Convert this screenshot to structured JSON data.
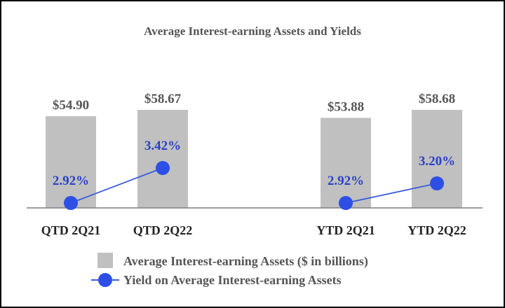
{
  "chart_data": {
    "type": "bar",
    "title": "Average Interest-earning Assets and Yields",
    "categories": [
      "QTD 2Q21",
      "QTD 2Q22",
      "YTD 2Q21",
      "YTD 2Q22"
    ],
    "groups": [
      [
        "QTD 2Q21",
        "QTD 2Q22"
      ],
      [
        "YTD 2Q21",
        "YTD 2Q22"
      ]
    ],
    "series": [
      {
        "name": "Average Interest-earning Assets ($ in billions)",
        "type": "bar",
        "values": [
          54.9,
          58.67,
          53.88,
          58.68
        ],
        "labels": [
          "$54.90",
          "$58.67",
          "$53.88",
          "$58.68"
        ]
      },
      {
        "name": "Yield on Average Interest-earning Assets",
        "type": "line",
        "values": [
          2.92,
          3.42,
          2.92,
          3.2
        ],
        "labels": [
          "2.92%",
          "3.42%",
          "2.92%",
          "3.20%"
        ]
      }
    ],
    "bar_ylim": [
      0,
      62
    ],
    "yield_ylim": [
      2.5,
      3.8
    ],
    "legend_position": "bottom",
    "colors": {
      "bar": "#c0c0c0",
      "line": "#3b5bdb",
      "marker": "#2e4fe6",
      "yield_text": "#2a40c8"
    }
  }
}
